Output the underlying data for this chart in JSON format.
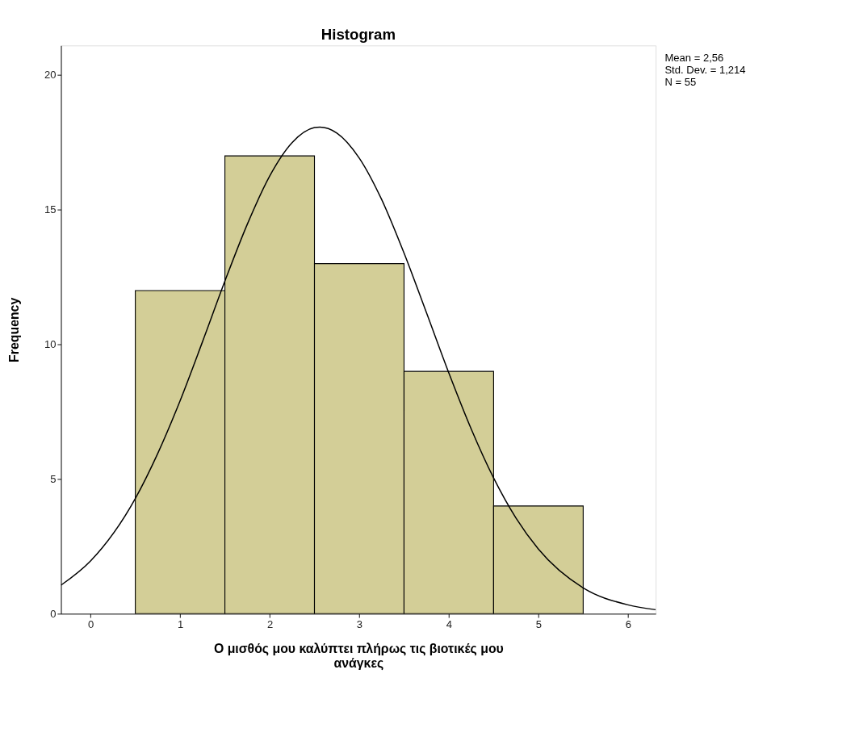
{
  "chart_data": {
    "type": "histogram",
    "title": "Histogram",
    "xlabel": "Ο μισθός μου καλύπτει πλήρως τις βιοτικές μου ανάγκες",
    "ylabel": "Frequency",
    "bins": [
      0.5,
      1.5,
      2.5,
      3.5,
      4.5,
      5.5
    ],
    "values": [
      12,
      17,
      13,
      9,
      4
    ],
    "color": "#d3ce97",
    "series": [
      {
        "type": "line",
        "color": "#000000",
        "x": [
          -0.33,
          0,
          0.5,
          0.75,
          1,
          1.25,
          1.5,
          1.75,
          2,
          2.25,
          2.5,
          2.56,
          2.75,
          3,
          3.25,
          3.5,
          3.75,
          4,
          4.25,
          4.5,
          4.75,
          5,
          5.5,
          6,
          6.31
        ],
        "values": [
          1.06,
          1.96,
          4.28,
          5.95,
          7.91,
          10.1,
          12.35,
          14.46,
          16.25,
          17.49,
          18.05,
          18.07,
          17.85,
          16.92,
          15.38,
          13.39,
          11.18,
          8.94,
          6.86,
          5.04,
          3.55,
          2.4,
          0.96,
          0.33,
          0.15
        ]
      }
    ],
    "xlim": [
      -0.33,
      6.31
    ],
    "ylim": [
      0,
      21.1
    ],
    "xticks": [
      0,
      1,
      2,
      3,
      4,
      5,
      6
    ],
    "yticks": [
      0,
      5,
      10,
      15,
      20
    ],
    "grid": false,
    "annotations": [
      "Mean = 2,56",
      "Std. Dev. = 1,214",
      "N = 55"
    ]
  }
}
